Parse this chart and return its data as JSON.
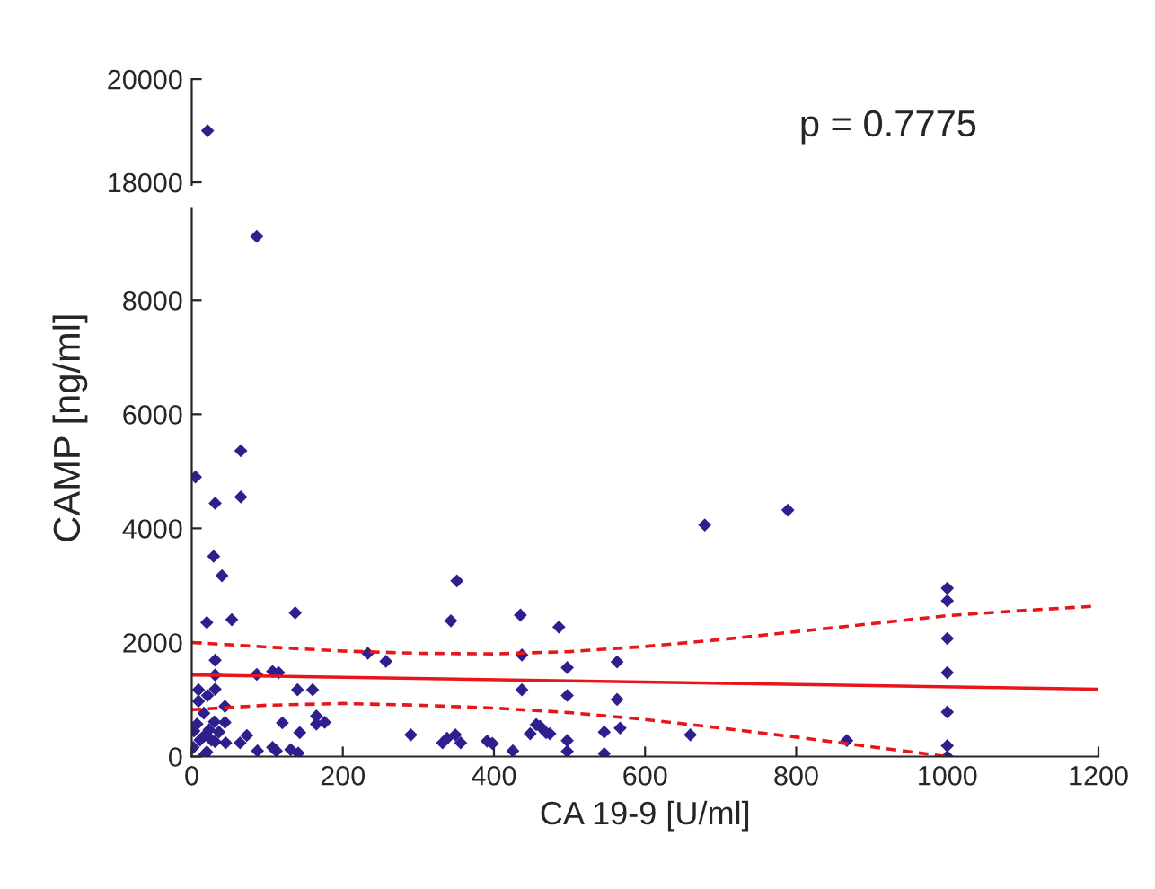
{
  "chart_data": [
    {
      "type": "scatter",
      "xlim": [
        0,
        1200
      ],
      "ylim": [
        17950,
        20000
      ],
      "yticks": [
        18000,
        20000
      ],
      "tick_labels": "y",
      "grid": false,
      "marker": "diamond",
      "annotations": [
        "p = 0.7775"
      ],
      "series": [
        {
          "color": "#2e1f8f",
          "x": [
            21
          ],
          "values": [
            19000
          ]
        }
      ]
    },
    {
      "type": "scatter",
      "xlim": [
        0,
        1200
      ],
      "ylim": [
        0,
        9600
      ],
      "xticks": [
        0,
        200,
        400,
        600,
        800,
        1000,
        1200
      ],
      "yticks": [
        0,
        2000,
        4000,
        6000,
        8000
      ],
      "xlabel": "CA 19-9 [U/ml]",
      "ylabel": "CAMP [ng/ml]",
      "grid": false,
      "marker": "diamond",
      "series": [
        {
          "color": "#2e1f8f",
          "x": [
            86,
            5,
            65,
            65,
            31,
            29,
            40,
            20,
            53,
            137,
            31,
            31,
            9,
            21,
            31,
            44,
            86,
            107,
            115,
            140,
            160,
            233,
            257,
            343,
            351,
            435,
            437,
            437,
            120,
            165,
            165,
            176,
            143,
            73,
            64,
            45,
            87,
            107,
            112,
            131,
            141,
            290,
            332,
            338,
            349,
            356,
            391,
            398,
            425,
            448,
            461,
            474,
            3,
            7,
            11,
            17,
            20,
            23,
            26,
            30,
            31,
            36,
            44,
            2,
            16,
            17,
            9,
            679,
            789,
            1000,
            1000,
            1000,
            1000,
            1000,
            1000,
            1000,
            486,
            497,
            497,
            497,
            497,
            456,
            469,
            563,
            563,
            567,
            546,
            546,
            660,
            867
          ],
          "values": [
            9120,
            4900,
            5360,
            4550,
            4440,
            3510,
            3170,
            2350,
            2400,
            2520,
            1690,
            1430,
            1170,
            1070,
            1180,
            880,
            1440,
            1490,
            1470,
            1170,
            1170,
            1810,
            1670,
            2380,
            3080,
            2480,
            1780,
            1170,
            590,
            710,
            570,
            600,
            420,
            370,
            240,
            240,
            100,
            160,
            100,
            120,
            60,
            380,
            240,
            320,
            380,
            240,
            270,
            230,
            100,
            400,
            530,
            400,
            450,
            570,
            290,
            370,
            80,
            470,
            290,
            610,
            260,
            430,
            600,
            160,
            760,
            30,
            970,
            4060,
            4320,
            2950,
            2730,
            2070,
            1470,
            780,
            190,
            0,
            2270,
            1560,
            1070,
            280,
            90,
            560,
            420,
            1660,
            1000,
            500,
            430,
            50,
            380,
            280
          ]
        },
        {
          "type": "line",
          "color": "#e8161b",
          "line_style": "solid",
          "marker": "none",
          "x": [
            0,
            1200
          ],
          "values": [
            1430,
            1180
          ]
        },
        {
          "type": "line",
          "color": "#e8161b",
          "line_style": "dashed",
          "marker": "none",
          "x": [
            0,
            100,
            200,
            300,
            400,
            500,
            600,
            700,
            800,
            900,
            1000,
            1100,
            1200
          ],
          "values": [
            2000,
            1920,
            1850,
            1810,
            1800,
            1840,
            1930,
            2050,
            2190,
            2330,
            2470,
            2560,
            2640
          ]
        },
        {
          "type": "line",
          "color": "#e8161b",
          "line_style": "dashed",
          "marker": "none",
          "x": [
            0,
            100,
            200,
            300,
            400,
            500,
            600,
            700,
            800,
            900,
            1000
          ],
          "values": [
            820,
            900,
            930,
            900,
            850,
            770,
            650,
            500,
            340,
            170,
            0
          ]
        }
      ]
    }
  ]
}
